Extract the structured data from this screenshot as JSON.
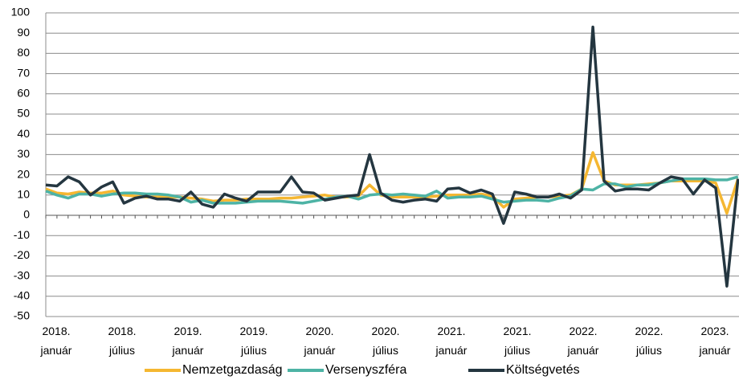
{
  "chart_data": {
    "type": "line",
    "categories": [
      "2018. január",
      null,
      null,
      null,
      null,
      null,
      "2018. július",
      null,
      null,
      null,
      null,
      null,
      "2019. január",
      null,
      null,
      null,
      null,
      null,
      "2019. július",
      null,
      null,
      null,
      null,
      null,
      "2020. január",
      null,
      null,
      null,
      null,
      null,
      "2020. július",
      null,
      null,
      null,
      null,
      null,
      "2021. január",
      null,
      null,
      null,
      null,
      null,
      "2021. július",
      null,
      null,
      null,
      null,
      null,
      "2022. január",
      null,
      null,
      null,
      null,
      null,
      "2022. július",
      null,
      null,
      null,
      null,
      null,
      "2023. január",
      null,
      null
    ],
    "series": [
      {
        "name": "Nemzetgazdaság",
        "color": "#f5b731",
        "values": [
          13,
          11,
          10.5,
          11.5,
          11,
          11,
          12,
          10,
          9.5,
          9,
          9,
          9,
          9,
          8.5,
          8,
          7,
          7.5,
          7.5,
          8,
          8,
          8,
          8.5,
          8.5,
          9,
          9.5,
          10,
          9,
          9,
          9.5,
          15,
          10,
          9,
          9,
          9,
          9,
          9.5,
          10,
          10,
          10,
          10.5,
          9.5,
          4,
          8,
          8.5,
          9,
          9,
          9.5,
          10,
          13,
          31,
          17,
          15,
          15,
          15,
          15.5,
          16,
          17,
          17,
          17,
          17,
          16,
          1,
          18
        ]
      },
      {
        "name": "Versenyszféra",
        "color": "#4db3a5",
        "values": [
          12,
          10,
          8.5,
          10.5,
          10.5,
          9.5,
          10.5,
          11,
          11,
          10.5,
          10.5,
          10,
          9,
          6.5,
          7.5,
          6,
          6,
          6,
          6.5,
          7,
          7,
          7,
          6.5,
          6,
          7,
          8,
          9,
          9.5,
          8,
          10,
          10.5,
          10,
          10.5,
          10,
          9.5,
          12,
          8.5,
          9,
          9,
          9.5,
          8,
          6.5,
          7,
          7.5,
          7.5,
          7,
          8.5,
          9.5,
          13,
          12.5,
          15.5,
          15.5,
          14,
          15,
          15,
          16,
          17,
          18,
          18,
          18,
          17.5,
          17.5,
          19
        ]
      },
      {
        "name": "Költségvetés",
        "color": "#243640",
        "values": [
          15,
          14.5,
          19,
          16.5,
          10,
          14,
          16.5,
          6,
          8.5,
          9.5,
          8,
          8,
          7,
          11.5,
          5.5,
          4,
          10.5,
          8.5,
          7,
          11.5,
          11.5,
          11.5,
          19,
          11.5,
          11,
          7.5,
          8.5,
          9.5,
          10,
          30,
          11,
          7.5,
          6.5,
          7.5,
          8,
          7,
          13,
          13.5,
          11,
          12.5,
          10.5,
          -4,
          11.5,
          10.5,
          9,
          9,
          10.5,
          8.5,
          12.5,
          93,
          17,
          12,
          13,
          13,
          12.5,
          16,
          19,
          18,
          10.5,
          17.5,
          13.5,
          -35,
          18
        ]
      }
    ],
    "ylim": [
      -50,
      100
    ],
    "yticks": [
      -50,
      -40,
      -30,
      -20,
      -10,
      0,
      10,
      20,
      30,
      40,
      50,
      60,
      70,
      80,
      90,
      100
    ],
    "grid": true,
    "legend": "bottom"
  }
}
